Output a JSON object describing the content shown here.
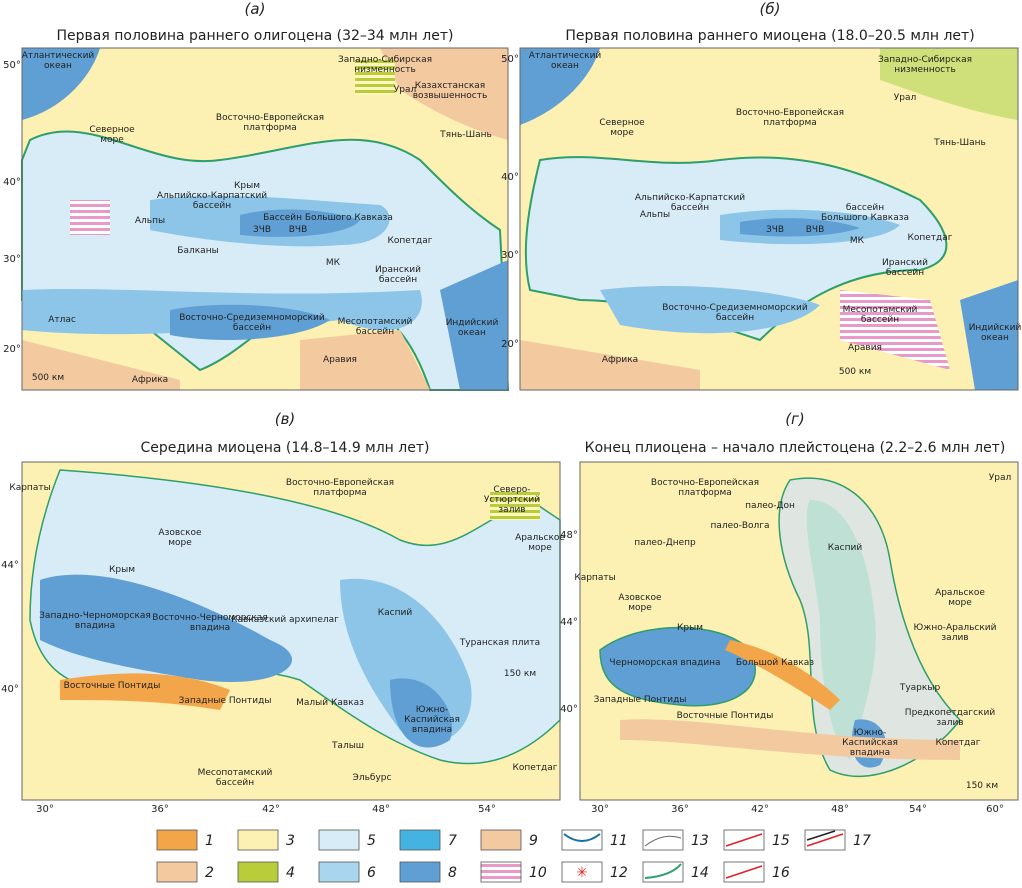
{
  "panels": [
    {
      "letter": "(а)",
      "title": "Первая половина раннего олигоцена (32–34 млн лет)",
      "lat_ticks": [
        "50°",
        "40°",
        "30°",
        "20°"
      ],
      "lon_ticks": [],
      "scale": "500 км",
      "labels": [
        [
          "Атлантический",
          "океан"
        ],
        [
          "Западно-Сибирская",
          "низменность"
        ],
        [
          "Казахстанская",
          "возвышенность"
        ],
        [
          "Урал"
        ],
        [
          "Восточно-Европейская",
          "платформа"
        ],
        [
          "Северное",
          "море"
        ],
        [
          "Тянь-Шань"
        ],
        [
          "Крым"
        ],
        [
          "Альпийско-Карпатский",
          "бассейн"
        ],
        [
          "Альпы"
        ],
        [
          "Бассейн Большого Кавказа"
        ],
        [
          "ЗЧВ"
        ],
        [
          "ВЧВ"
        ],
        [
          "Балканы"
        ],
        [
          "Копетдаг"
        ],
        [
          "МК"
        ],
        [
          "Иранский",
          "бассейн"
        ],
        [
          "Атлас"
        ],
        [
          "Восточно-Средиземноморский",
          "бассейн"
        ],
        [
          "Месопотамский",
          "бассейн"
        ],
        [
          "Индийский",
          "океан"
        ],
        [
          "Аравия"
        ],
        [
          "Африка"
        ]
      ]
    },
    {
      "letter": "(б)",
      "title": "Первая половина раннего миоцена (18.0–20.5 млн лет)",
      "lat_ticks": [
        "50°",
        "40°",
        "30°",
        "20°"
      ],
      "lon_ticks": [],
      "scale": "500 км",
      "labels": [
        [
          "Атлантический",
          "океан"
        ],
        [
          "Западно-Сибирская",
          "низменность"
        ],
        [
          "Урал"
        ],
        [
          "Северное",
          "море"
        ],
        [
          "Восточно-Европейская",
          "платформа"
        ],
        [
          "Тянь-Шань"
        ],
        [
          "Альпийско-Карпатский",
          "бассейн"
        ],
        [
          "Альпы"
        ],
        [
          "бассейн",
          "Большого Кавказа"
        ],
        [
          "ЗЧВ"
        ],
        [
          "ВЧВ"
        ],
        [
          "МК"
        ],
        [
          "Копетдаг"
        ],
        [
          "Иранский",
          "бассейн"
        ],
        [
          "Месопотамский",
          "бассейн"
        ],
        [
          "Восточно-Средиземноморский",
          "бассейн"
        ],
        [
          "Индийский",
          "океан"
        ],
        [
          "Аравия"
        ],
        [
          "Африка"
        ]
      ]
    },
    {
      "letter": "(в)",
      "title": "Середина миоцена (14.8–14.9 млн лет)",
      "lat_ticks": [
        "44°",
        "40°"
      ],
      "lon_ticks": [
        "30°",
        "36°",
        "42°",
        "48°",
        "54°"
      ],
      "scale": "150 км",
      "labels": [
        [
          "Карпаты"
        ],
        [
          "Восточно-Европейская",
          "платформа"
        ],
        [
          "Северо-",
          "Устюртский",
          "залив"
        ],
        [
          "Аральское",
          "море"
        ],
        [
          "Азовское",
          "море"
        ],
        [
          "Крым"
        ],
        [
          "Западно-Черноморская",
          "впадина"
        ],
        [
          "Восточно-Черноморская",
          "впадина"
        ],
        [
          "Кавказский архипелаг"
        ],
        [
          "Каспий"
        ],
        [
          "Туранская плита"
        ],
        [
          "Восточные Понтиды"
        ],
        [
          "Западные Понтиды"
        ],
        [
          "Малый Кавказ"
        ],
        [
          "Южно-",
          "Каспийская",
          "впадина"
        ],
        [
          "Талыш"
        ],
        [
          "Эльбурс"
        ],
        [
          "Копетдаг"
        ],
        [
          "Месопотамский",
          "бассейн"
        ]
      ]
    },
    {
      "letter": "(г)",
      "title": "Конец плиоцена – начало плейстоцена (2.2–2.6 млн лет)",
      "lat_ticks": [
        "48°",
        "44°",
        "40°"
      ],
      "lon_ticks": [
        "30°",
        "36°",
        "42°",
        "48°",
        "54°",
        "60°"
      ],
      "scale": "150 км",
      "labels": [
        [
          "Восточно-Европейская",
          "платформа"
        ],
        [
          "палео-Дон"
        ],
        [
          "палео-Днепр"
        ],
        [
          "палео-Волга"
        ],
        [
          "Урал"
        ],
        [
          "Каспий"
        ],
        [
          "Аральское",
          "море"
        ],
        [
          "Карпаты"
        ],
        [
          "Азовское",
          "море"
        ],
        [
          "Крым"
        ],
        [
          "Черноморская впадина"
        ],
        [
          "Южно-Аральский",
          "залив"
        ],
        [
          "Большой Кавказ"
        ],
        [
          "Туаркыр"
        ],
        [
          "Западные Понтиды"
        ],
        [
          "Восточные Понтиды"
        ],
        [
          "Предкопетдагский",
          "залив"
        ],
        [
          "Южно-",
          "Каспийская",
          "впадина"
        ],
        [
          "Копетдаг"
        ]
      ]
    }
  ],
  "legend": [
    "1",
    "2",
    "3",
    "4",
    "5",
    "6",
    "7",
    "8",
    "9",
    "10",
    "11",
    "12",
    "13",
    "14",
    "15",
    "16",
    "17"
  ]
}
